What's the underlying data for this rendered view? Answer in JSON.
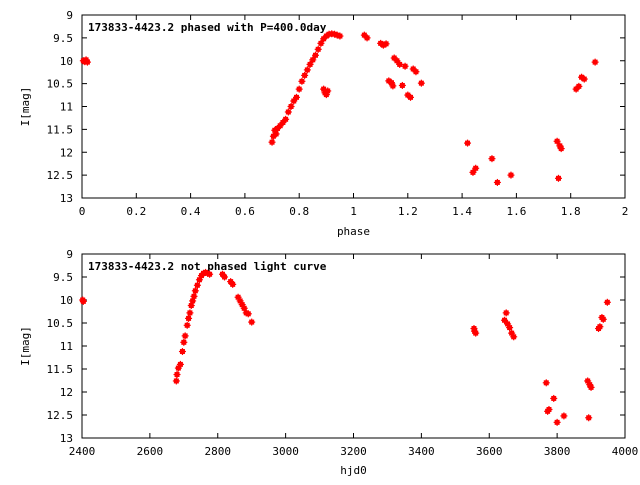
{
  "colors": {
    "points": "#ff0000",
    "axes": "#000000",
    "background": "#ffffff"
  },
  "chart_data": [
    {
      "type": "scatter",
      "title": "173833-4423.2 phased with P=400.0day",
      "xlabel": "phase",
      "ylabel": "I[mag]",
      "xlim": [
        0,
        2
      ],
      "ylim": [
        9,
        13
      ],
      "y_inverted": true,
      "grid": false,
      "x_ticks": [
        "0",
        "0.2",
        "0.4",
        "0.6",
        "0.8",
        "1",
        "1.2",
        "1.4",
        "1.6",
        "1.8",
        "2"
      ],
      "y_ticks": [
        "9",
        "9.5",
        "10",
        "10.5",
        "11",
        "11.5",
        "12",
        "12.5",
        "13"
      ],
      "points": [
        [
          0.005,
          10.0
        ],
        [
          0.01,
          10.02
        ],
        [
          0.015,
          9.98
        ],
        [
          0.02,
          10.03
        ],
        [
          0.7,
          11.78
        ],
        [
          0.705,
          11.65
        ],
        [
          0.71,
          11.52
        ],
        [
          0.715,
          11.6
        ],
        [
          0.72,
          11.48
        ],
        [
          0.73,
          11.42
        ],
        [
          0.74,
          11.35
        ],
        [
          0.75,
          11.28
        ],
        [
          0.76,
          11.12
        ],
        [
          0.77,
          11.0
        ],
        [
          0.78,
          10.88
        ],
        [
          0.79,
          10.8
        ],
        [
          0.8,
          10.62
        ],
        [
          0.81,
          10.45
        ],
        [
          0.82,
          10.32
        ],
        [
          0.83,
          10.2
        ],
        [
          0.84,
          10.08
        ],
        [
          0.85,
          9.98
        ],
        [
          0.86,
          9.88
        ],
        [
          0.87,
          9.75
        ],
        [
          0.88,
          9.62
        ],
        [
          0.89,
          9.52
        ],
        [
          0.9,
          9.46
        ],
        [
          0.91,
          9.42
        ],
        [
          0.92,
          9.41
        ],
        [
          0.93,
          9.42
        ],
        [
          0.94,
          9.44
        ],
        [
          0.95,
          9.46
        ],
        [
          0.89,
          10.62
        ],
        [
          0.895,
          10.7
        ],
        [
          0.9,
          10.74
        ],
        [
          0.905,
          10.66
        ],
        [
          1.04,
          9.44
        ],
        [
          1.05,
          9.5
        ],
        [
          1.1,
          9.62
        ],
        [
          1.11,
          9.66
        ],
        [
          1.12,
          9.63
        ],
        [
          1.13,
          10.44
        ],
        [
          1.14,
          10.48
        ],
        [
          1.145,
          10.55
        ],
        [
          1.15,
          9.94
        ],
        [
          1.16,
          10.0
        ],
        [
          1.17,
          10.08
        ],
        [
          1.18,
          10.54
        ],
        [
          1.19,
          10.12
        ],
        [
          1.2,
          10.75
        ],
        [
          1.21,
          10.8
        ],
        [
          1.22,
          10.18
        ],
        [
          1.23,
          10.24
        ],
        [
          1.25,
          10.49
        ],
        [
          1.42,
          11.8
        ],
        [
          1.44,
          12.44
        ],
        [
          1.45,
          12.35
        ],
        [
          1.51,
          12.14
        ],
        [
          1.53,
          12.66
        ],
        [
          1.58,
          12.5
        ],
        [
          1.75,
          11.76
        ],
        [
          1.755,
          12.57
        ],
        [
          1.76,
          11.86
        ],
        [
          1.765,
          11.92
        ],
        [
          1.82,
          10.62
        ],
        [
          1.83,
          10.56
        ],
        [
          1.84,
          10.36
        ],
        [
          1.85,
          10.4
        ],
        [
          1.89,
          10.03
        ]
      ]
    },
    {
      "type": "scatter",
      "title": "173833-4423.2 not phased light curve",
      "xlabel": "hjd0",
      "ylabel": "I[mag]",
      "xlim": [
        2400,
        4000
      ],
      "ylim": [
        9,
        13
      ],
      "y_inverted": true,
      "grid": false,
      "x_ticks": [
        "2400",
        "2600",
        "2800",
        "3000",
        "3200",
        "3400",
        "3600",
        "3800",
        "4000"
      ],
      "y_ticks": [
        "9",
        "9.5",
        "10",
        "10.5",
        "11",
        "11.5",
        "12",
        "12.5",
        "13"
      ],
      "points": [
        [
          2402,
          10.0
        ],
        [
          2404,
          10.03
        ],
        [
          2678,
          11.76
        ],
        [
          2680,
          11.62
        ],
        [
          2684,
          11.48
        ],
        [
          2690,
          11.4
        ],
        [
          2696,
          11.12
        ],
        [
          2700,
          10.92
        ],
        [
          2704,
          10.78
        ],
        [
          2710,
          10.55
        ],
        [
          2714,
          10.4
        ],
        [
          2718,
          10.28
        ],
        [
          2722,
          10.12
        ],
        [
          2726,
          10.02
        ],
        [
          2730,
          9.92
        ],
        [
          2734,
          9.8
        ],
        [
          2740,
          9.68
        ],
        [
          2746,
          9.56
        ],
        [
          2752,
          9.47
        ],
        [
          2758,
          9.42
        ],
        [
          2764,
          9.4
        ],
        [
          2770,
          9.42
        ],
        [
          2776,
          9.44
        ],
        [
          2814,
          9.44
        ],
        [
          2820,
          9.5
        ],
        [
          2838,
          9.6
        ],
        [
          2844,
          9.66
        ],
        [
          2860,
          9.94
        ],
        [
          2866,
          10.02
        ],
        [
          2872,
          10.1
        ],
        [
          2878,
          10.18
        ],
        [
          2884,
          10.28
        ],
        [
          2890,
          10.3
        ],
        [
          2900,
          10.48
        ],
        [
          3555,
          10.62
        ],
        [
          3557,
          10.68
        ],
        [
          3560,
          10.72
        ],
        [
          3645,
          10.44
        ],
        [
          3650,
          10.28
        ],
        [
          3654,
          10.52
        ],
        [
          3660,
          10.6
        ],
        [
          3666,
          10.72
        ],
        [
          3672,
          10.8
        ],
        [
          3768,
          11.8
        ],
        [
          3772,
          12.42
        ],
        [
          3776,
          12.38
        ],
        [
          3790,
          12.14
        ],
        [
          3800,
          12.66
        ],
        [
          3820,
          12.52
        ],
        [
          3890,
          11.76
        ],
        [
          3893,
          12.56
        ],
        [
          3896,
          11.84
        ],
        [
          3900,
          11.9
        ],
        [
          3922,
          10.62
        ],
        [
          3926,
          10.58
        ],
        [
          3932,
          10.38
        ],
        [
          3936,
          10.42
        ],
        [
          3948,
          10.05
        ]
      ]
    }
  ]
}
